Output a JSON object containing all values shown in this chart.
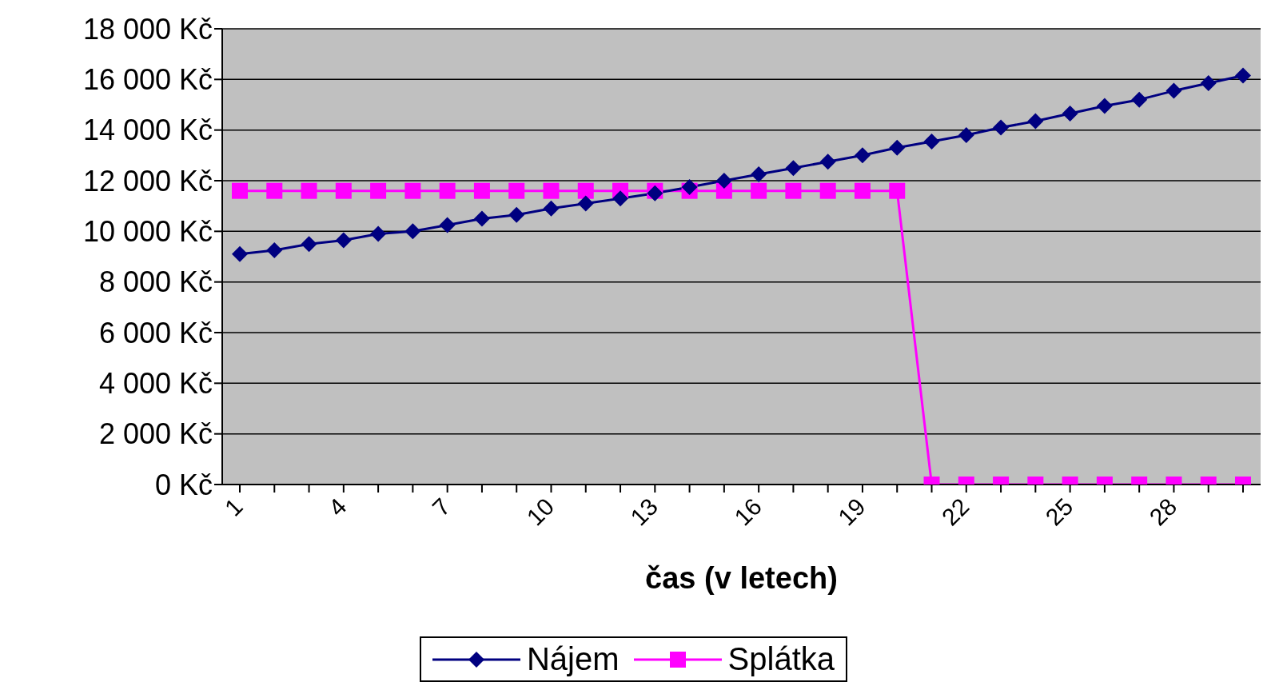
{
  "chart_data": {
    "type": "line",
    "xlabel": "čas (v letech)",
    "categories": [
      "1",
      null,
      null,
      "4",
      null,
      null,
      "7",
      null,
      null,
      "10",
      null,
      null,
      "13",
      null,
      null,
      "16",
      null,
      null,
      "19",
      null,
      null,
      "22",
      null,
      null,
      "25",
      null,
      null,
      "28",
      null,
      null
    ],
    "series": [
      {
        "name": "Nájem",
        "color": "#000080",
        "marker": "diamond",
        "values": [
          9100,
          9250,
          9500,
          9650,
          9900,
          10000,
          10250,
          10500,
          10650,
          10900,
          11100,
          11300,
          11500,
          11750,
          12000,
          12250,
          12500,
          12750,
          13000,
          13300,
          13550,
          13800,
          14100,
          14350,
          14650,
          14950,
          15200,
          15550,
          15850,
          16150
        ]
      },
      {
        "name": "Splátka",
        "color": "#ff00ff",
        "marker": "square",
        "values": [
          11600,
          11600,
          11600,
          11600,
          11600,
          11600,
          11600,
          11600,
          11600,
          11600,
          11600,
          11600,
          11600,
          11600,
          11600,
          11600,
          11600,
          11600,
          11600,
          11600,
          0,
          0,
          0,
          0,
          0,
          0,
          0,
          0,
          0,
          0
        ]
      }
    ],
    "ylim": [
      0,
      18000
    ],
    "yticks": [
      {
        "value": 0,
        "label": "0 Kč"
      },
      {
        "value": 2000,
        "label": "2 000 Kč"
      },
      {
        "value": 4000,
        "label": "4 000 Kč"
      },
      {
        "value": 6000,
        "label": "6 000 Kč"
      },
      {
        "value": 8000,
        "label": "8 000 Kč"
      },
      {
        "value": 10000,
        "label": "10 000 Kč"
      },
      {
        "value": 12000,
        "label": "12 000 Kč"
      },
      {
        "value": 14000,
        "label": "14 000 Kč"
      },
      {
        "value": 16000,
        "label": "16 000 Kč"
      },
      {
        "value": 18000,
        "label": "18 000 Kč"
      }
    ],
    "grid": "y",
    "legend": "bottom",
    "line_style": "solid"
  }
}
